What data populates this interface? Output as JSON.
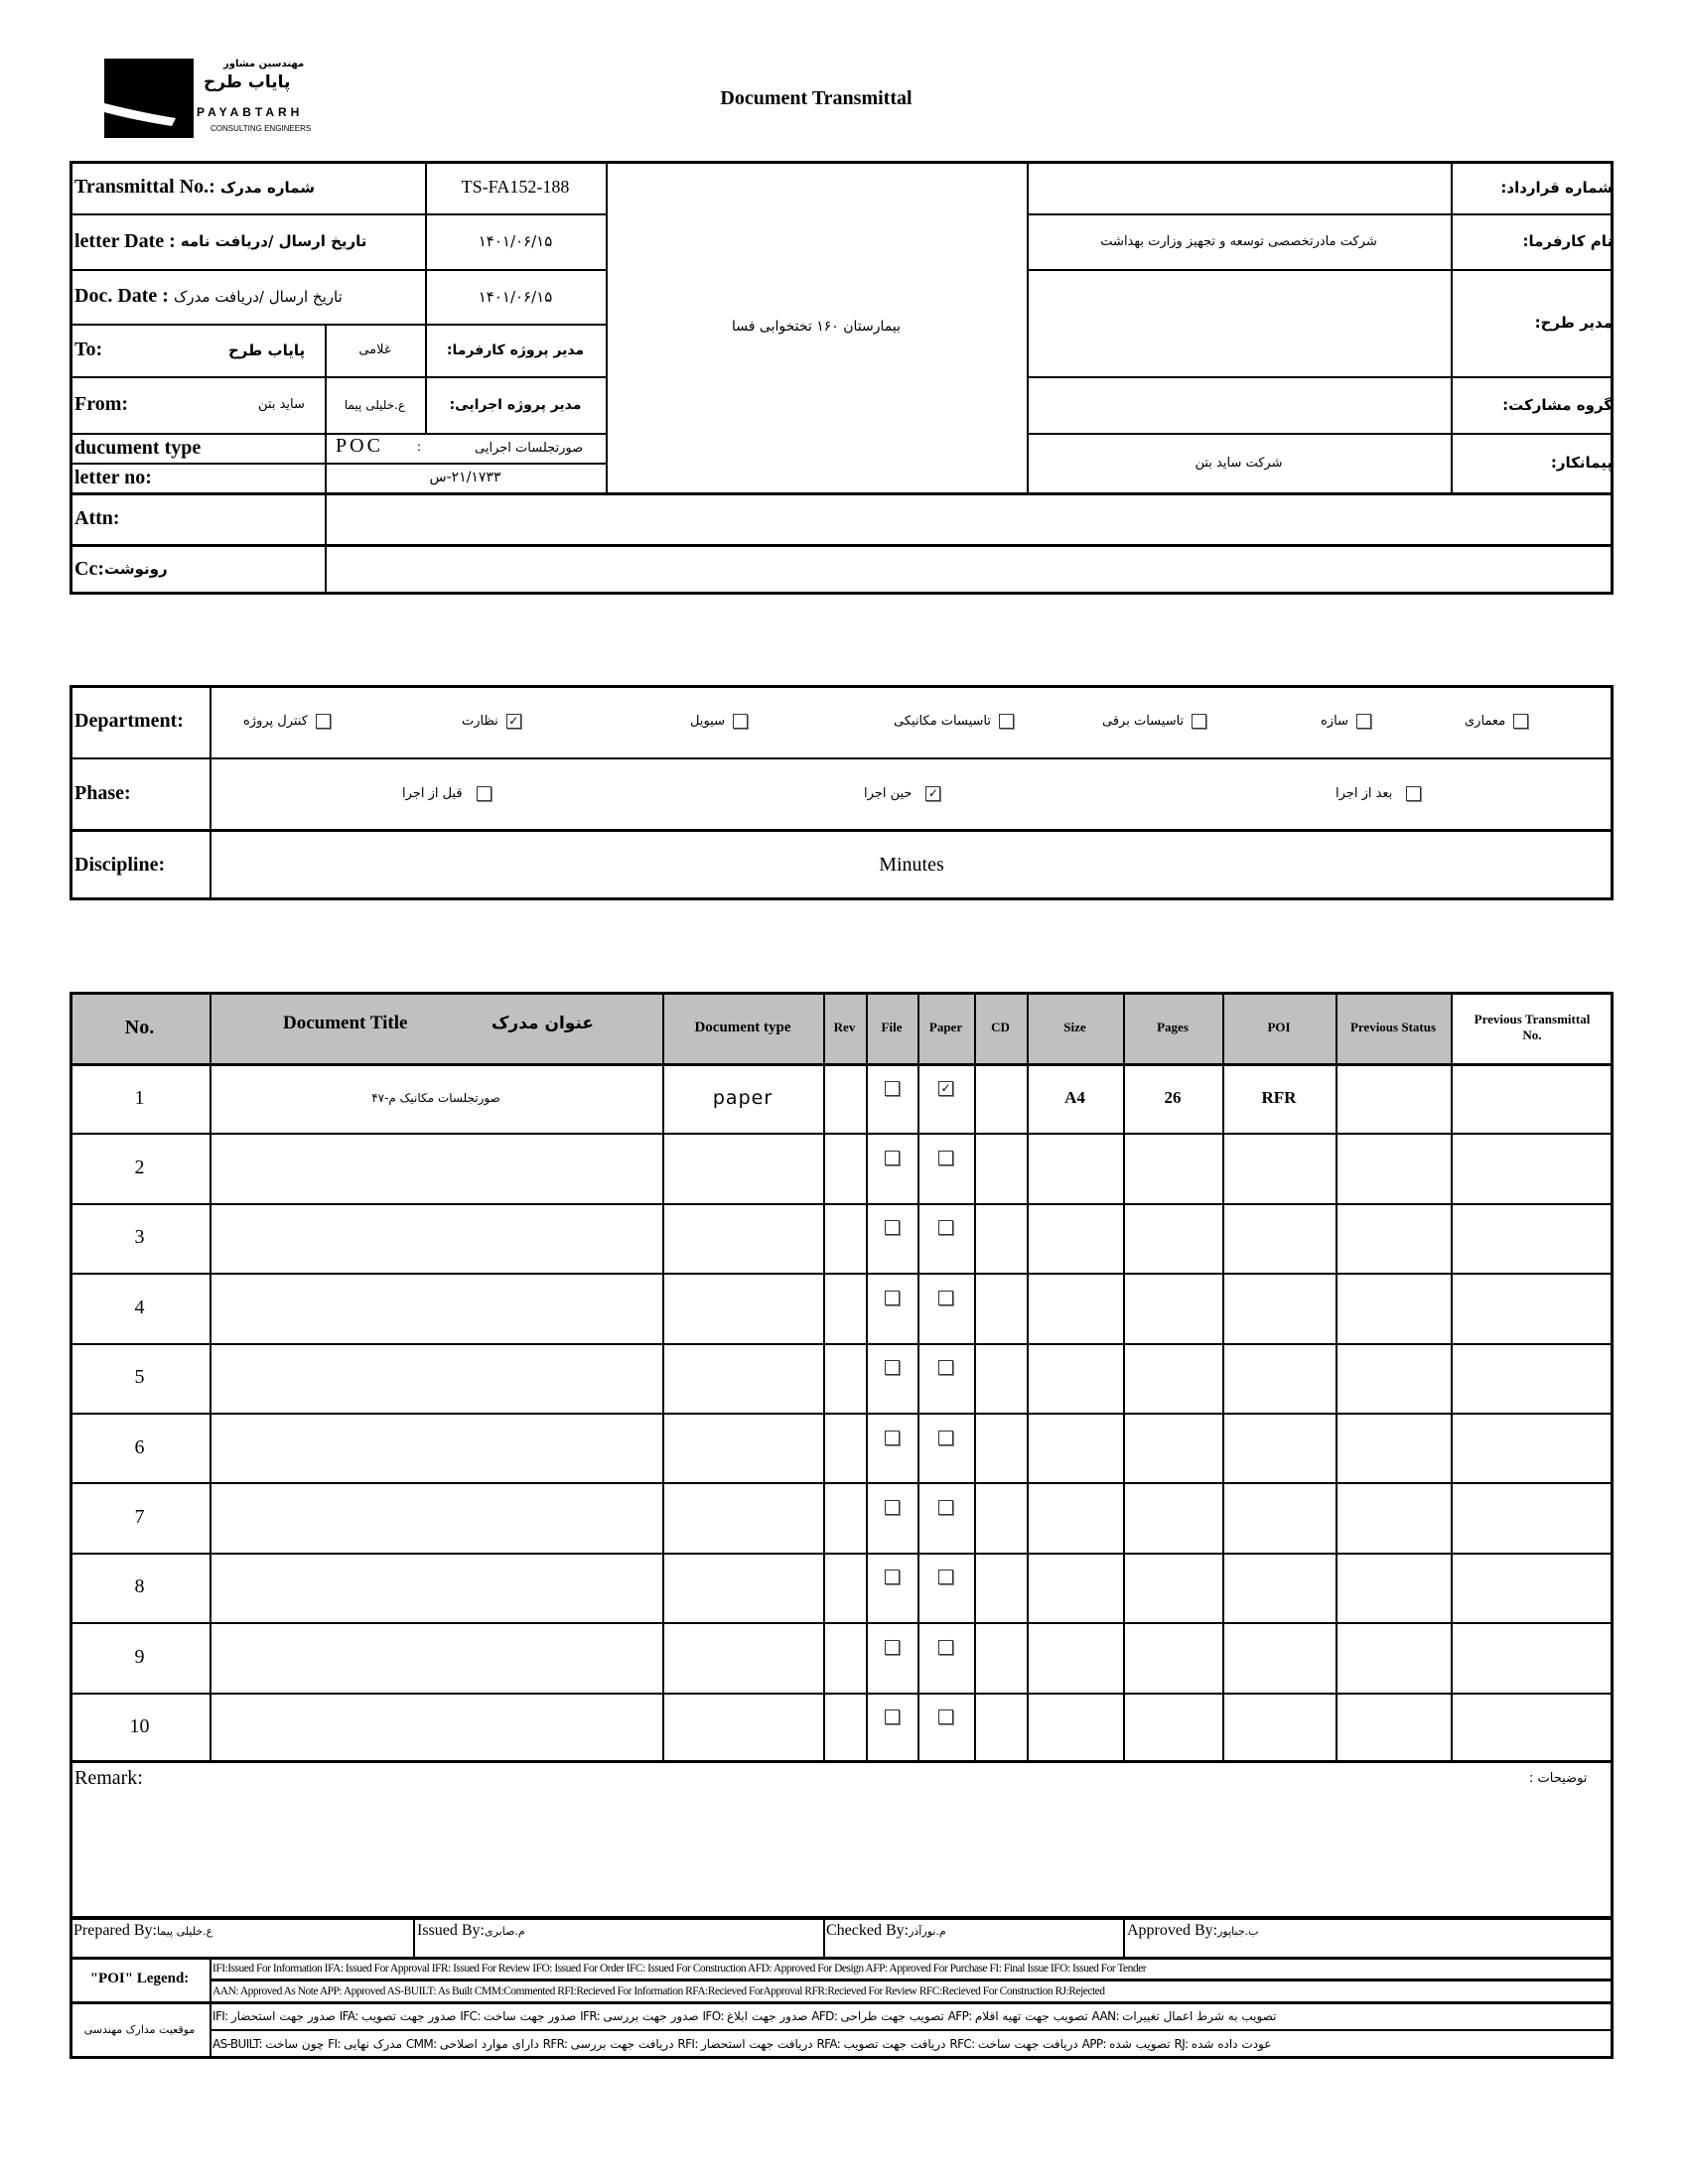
{
  "logo": {
    "fa_small": "مهندسین مشاور",
    "fa_name": "پایاب طرح",
    "en_name": "PAYABTARH",
    "en_sub": "CONSULTING ENGINEERS"
  },
  "title": "Document Transmittal",
  "info": {
    "transmittal_no_label": "Transmittal No.:",
    "transmittal_no_fa": "شماره مدرک",
    "transmittal_no": "TS-FA152-188",
    "letter_date_label": "letter Date :",
    "letter_date_fa": "تاریخ ارسال /دریافت نامه",
    "letter_date": "۱۴۰۱/۰۶/۱۵",
    "doc_date_label": "Doc. Date :",
    "doc_date_fa": "تاریخ ارسال /دریافت مدرک",
    "doc_date": "۱۴۰۱/۰۶/۱۵",
    "to_label": "To:",
    "to_value": "پایاب طرح",
    "to_person": "غلامی",
    "client_pm_label": "مدیر پروژه کارفرما:",
    "from_label": "From:",
    "from_value": "ساید بتن",
    "from_person": "ع.خلیلی پیما",
    "exec_pm_label": "مدیر پروژه اجرایی:",
    "doc_type_label": "ducument type",
    "doc_type_code": "POC",
    "doc_type_sep": ":",
    "doc_type_fa": "صورتجلسات اجرایی",
    "letter_no_label": "letter no:",
    "letter_no": "۲۱/۱۷۳۳-س",
    "project": "بیمارستان ۱۶۰ تختخوابی فسا",
    "contract_no_label": "شماره قرارداد:",
    "contract_no": "",
    "client_label": "نام کارفرما:",
    "client": "شرکت مادرتخصصی توسعه و تجهیز وزارت بهداشت",
    "plan_manager_label": "مدیر طرح:",
    "plan_manager": "",
    "partnership_label": "گروه مشارکت:",
    "partnership": "",
    "contractor_label": "پیمانکار:",
    "contractor": "شرکت ساید بتن",
    "attn_label": "Attn:",
    "attn": "",
    "cc_label": "Cc:",
    "cc_fa": "رونوشت",
    "cc": ""
  },
  "department": {
    "label": "Department:",
    "items": [
      {
        "label": "معماری",
        "checked": false
      },
      {
        "label": "سازه",
        "checked": false
      },
      {
        "label": "تاسیسات برقی",
        "checked": false
      },
      {
        "label": "تاسیسات مکانیکی",
        "checked": false
      },
      {
        "label": "سیویل",
        "checked": false
      },
      {
        "label": "نظارت",
        "checked": true
      },
      {
        "label": "کنترل پروژه",
        "checked": false
      }
    ]
  },
  "phase": {
    "label": "Phase:",
    "items": [
      {
        "label": "بعد از اجرا",
        "checked": false
      },
      {
        "label": "حین اجرا",
        "checked": true
      },
      {
        "label": "قبل از اجرا",
        "checked": false
      }
    ]
  },
  "discipline": {
    "label": "Discipline:",
    "value": "Minutes"
  },
  "docs": {
    "headers": {
      "no": "No.",
      "title_en": "Document Title",
      "title_fa": "عنوان مدرک",
      "type": "Document type",
      "rev": "Rev",
      "file": "File",
      "paper": "Paper",
      "cd": "CD",
      "size": "Size",
      "pages": "Pages",
      "poi": "POI",
      "prev_status": "Previous Status",
      "prev_transmittal": "Previous Transmittal No."
    },
    "rows": [
      {
        "no": "1",
        "title": "صورتجلسات مکانیک م-۴۷",
        "type": "paper",
        "rev": "",
        "file": false,
        "paper": true,
        "cd": "",
        "size": "A4",
        "pages": "26",
        "poi": "RFR",
        "prev_status": "",
        "prev_transmittal": ""
      },
      {
        "no": "2",
        "title": "",
        "type": "",
        "rev": "",
        "file": false,
        "paper": false,
        "cd": "",
        "size": "",
        "pages": "",
        "poi": "",
        "prev_status": "",
        "prev_transmittal": ""
      },
      {
        "no": "3",
        "title": "",
        "type": "",
        "rev": "",
        "file": false,
        "paper": false,
        "cd": "",
        "size": "",
        "pages": "",
        "poi": "",
        "prev_status": "",
        "prev_transmittal": ""
      },
      {
        "no": "4",
        "title": "",
        "type": "",
        "rev": "",
        "file": false,
        "paper": false,
        "cd": "",
        "size": "",
        "pages": "",
        "poi": "",
        "prev_status": "",
        "prev_transmittal": ""
      },
      {
        "no": "5",
        "title": "",
        "type": "",
        "rev": "",
        "file": false,
        "paper": false,
        "cd": "",
        "size": "",
        "pages": "",
        "poi": "",
        "prev_status": "",
        "prev_transmittal": ""
      },
      {
        "no": "6",
        "title": "",
        "type": "",
        "rev": "",
        "file": false,
        "paper": false,
        "cd": "",
        "size": "",
        "pages": "",
        "poi": "",
        "prev_status": "",
        "prev_transmittal": ""
      },
      {
        "no": "7",
        "title": "",
        "type": "",
        "rev": "",
        "file": false,
        "paper": false,
        "cd": "",
        "size": "",
        "pages": "",
        "poi": "",
        "prev_status": "",
        "prev_transmittal": ""
      },
      {
        "no": "8",
        "title": "",
        "type": "",
        "rev": "",
        "file": false,
        "paper": false,
        "cd": "",
        "size": "",
        "pages": "",
        "poi": "",
        "prev_status": "",
        "prev_transmittal": ""
      },
      {
        "no": "9",
        "title": "",
        "type": "",
        "rev": "",
        "file": false,
        "paper": false,
        "cd": "",
        "size": "",
        "pages": "",
        "poi": "",
        "prev_status": "",
        "prev_transmittal": ""
      },
      {
        "no": "10",
        "title": "",
        "type": "",
        "rev": "",
        "file": false,
        "paper": false,
        "cd": "",
        "size": "",
        "pages": "",
        "poi": "",
        "prev_status": "",
        "prev_transmittal": ""
      }
    ]
  },
  "remark": {
    "label": "Remark:",
    "label_fa": "توضیحات :",
    "value": ""
  },
  "signatures": {
    "prepared_label": "Prepared By:",
    "prepared": "ع.خلیلی پیما",
    "issued_label": "Issued By:",
    "issued": "م.صابری",
    "checked_label": "Checked By:",
    "checked": "م.نورآذر",
    "approved_label": "Approved By:",
    "approved": "ب.جباپور"
  },
  "legend": {
    "label": "\"POI\" Legend:",
    "line1": "IFI:Issued For Information  IFA: Issued For Approval  IFR: Issued For Review   IFO: Issued For Order  IFC: Issued For Construction AFD: Approved For Design AFP: Approved For Purchase  FI: Final Issue  IFO: Issued For Tender",
    "line2": "AAN: Approved As Note  APP: Approved  AS-BUILT: As Built CMM:Commented  RFI:Recieved For Information   RFA:Recieved ForApproval   RFR:Recieved For Review  RFC:Recieved For Construction  RJ:Rejected",
    "status_label": "موقعیت مدارک مهندسی",
    "line3": "IFI: صدور جهت استحضار   IFA: صدور جهت تصویب   IFC: صدور جهت ساخت   IFR: صدور جهت بررسی   IFO: صدور جهت ابلاغ   AFD: تصویب جهت طراحی   AFP: تصویب جهت تهیه اقلام   AAN: تصویب به شرط اعمال تغییرات",
    "line4": "AS-BUILT: چون ساخت   FI: مدرک نهایی   CMM: دارای موارد اصلاحی   RFR: دریافت جهت بررسی   RFI: دریافت جهت استحضار   RFA: دریافت جهت تصویب   RFC: دریافت جهت ساخت   APP: تصویب شده   RJ: عودت داده شده"
  }
}
